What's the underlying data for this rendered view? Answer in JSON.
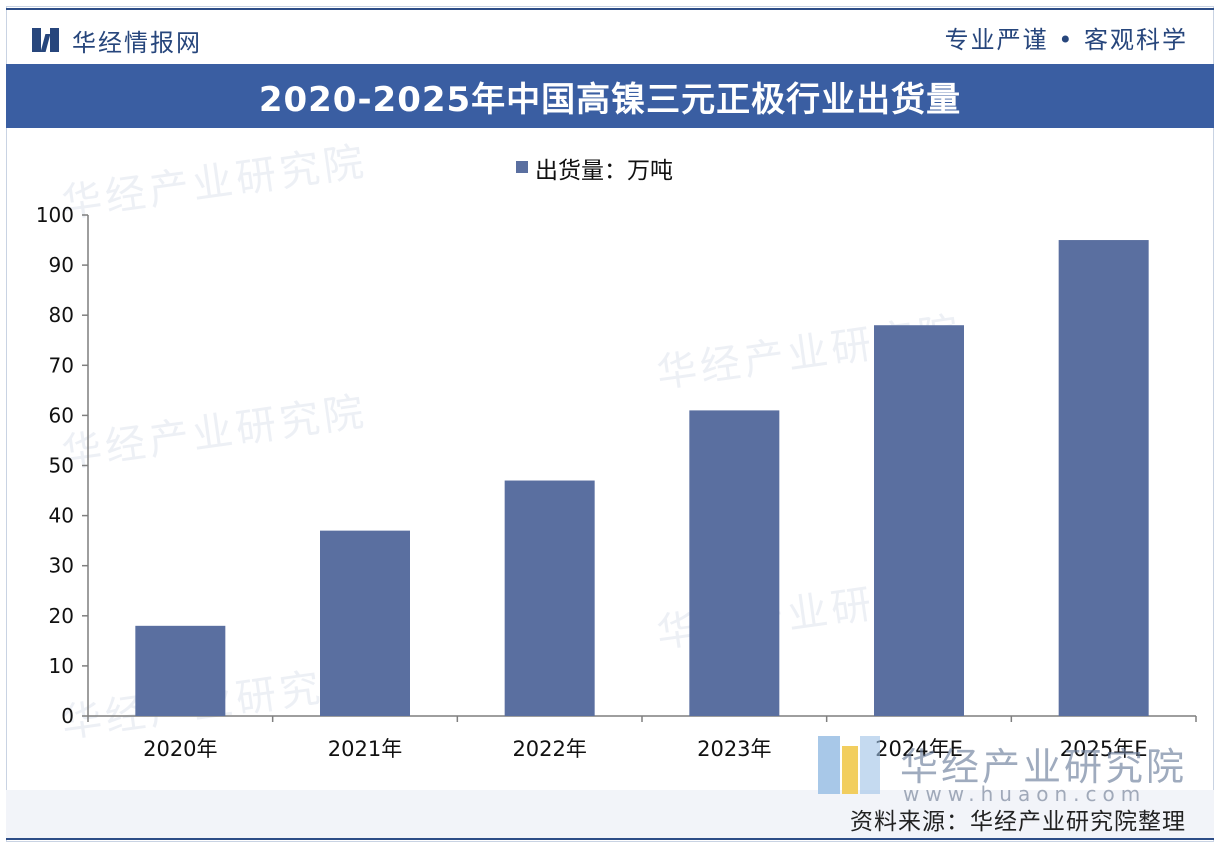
{
  "header": {
    "brand_name": "华经情报网",
    "slogan": "专业严谨 • 客观科学"
  },
  "chart_data": {
    "type": "bar",
    "title": "2020-2025年中国高镍三元正极行业出货量",
    "legend": [
      "出货量：万吨"
    ],
    "legend_placement": "top-center",
    "categories": [
      "2020年",
      "2021年",
      "2022年",
      "2023年",
      "2024年E",
      "2025年E"
    ],
    "series": [
      {
        "name": "出货量：万吨",
        "values": [
          18,
          37,
          47,
          61,
          78,
          95
        ]
      }
    ],
    "ylim": [
      0,
      100
    ],
    "yticks": [
      0,
      10,
      20,
      30,
      40,
      50,
      60,
      70,
      80,
      90,
      100
    ],
    "grid": false,
    "bar_color": "#5a6fa0"
  },
  "watermark": {
    "text": "华经产业研究院"
  },
  "footer": {
    "institute": "华经产业研究院",
    "website": "www.huaon.com",
    "source": "资料来源：华经产业研究院整理"
  },
  "colors": {
    "brand_blue": "#27467c",
    "title_band": "#3a5ea2",
    "bar": "#5a6fa0"
  }
}
